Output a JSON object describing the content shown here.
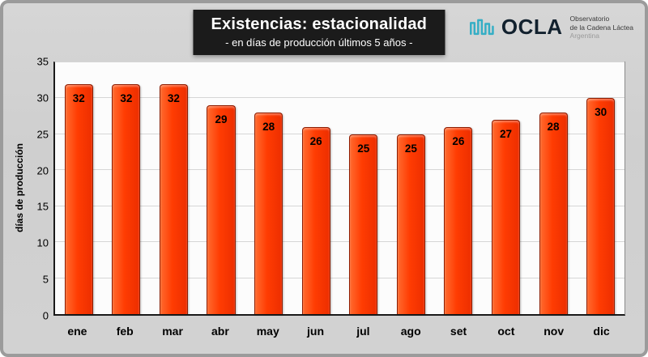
{
  "logo": {
    "name": "OCLA",
    "org_line1": "Observatorio",
    "org_line2": "de la Cadena Láctea",
    "org_line3": "Argentina",
    "icon_color": "#35aec5"
  },
  "chart_data": {
    "type": "bar",
    "title": "Existencias: estacionalidad",
    "subtitle": "- en días de producción últimos 5 años -",
    "categories": [
      "ene",
      "feb",
      "mar",
      "abr",
      "may",
      "jun",
      "jul",
      "ago",
      "set",
      "oct",
      "nov",
      "dic"
    ],
    "values": [
      32,
      32,
      32,
      29,
      28,
      26,
      25,
      25,
      26,
      27,
      28,
      30
    ],
    "xlabel": "",
    "ylabel": "días de producción",
    "ylim": [
      0,
      35
    ],
    "ytick_step": 5,
    "grid": true,
    "legend": "none",
    "bar_color": "#ff3c02",
    "bar_border_color": "#8e1c00",
    "value_label_color": "#000000"
  }
}
